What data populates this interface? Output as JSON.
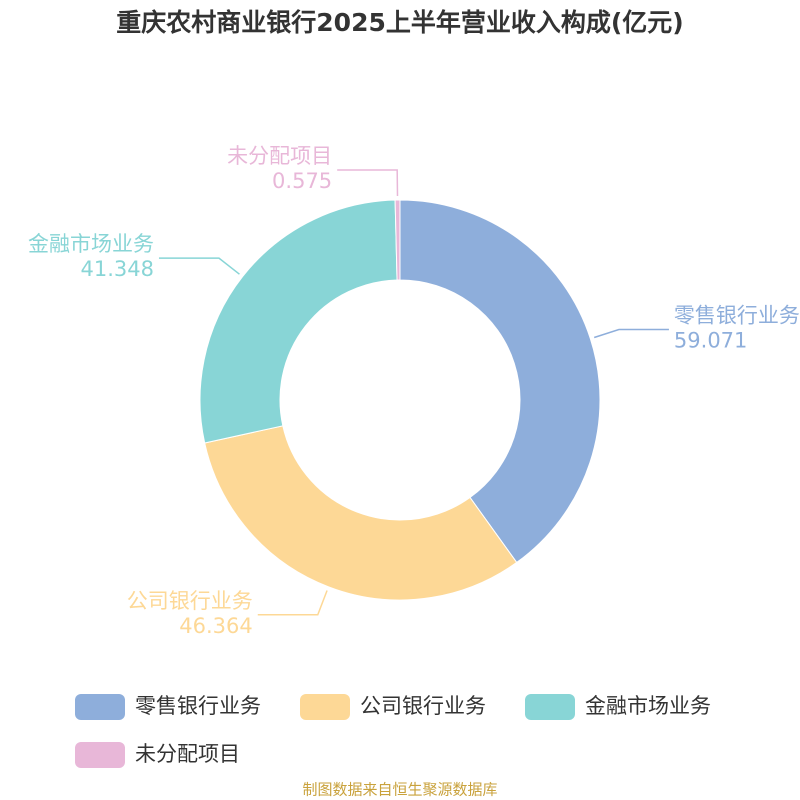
{
  "chart_data": {
    "type": "donut",
    "title": "重庆农村商业银行2025上半年营业收入构成(亿元)",
    "categories": [
      "零售银行业务",
      "公司银行业务",
      "金融市场业务",
      "未分配项目"
    ],
    "values": [
      59.071,
      46.364,
      41.348,
      0.575
    ],
    "colors": [
      "#8eaedb",
      "#fdd896",
      "#88d5d6",
      "#e8b7d8"
    ],
    "source": "制图数据来自恒生聚源数据库"
  }
}
